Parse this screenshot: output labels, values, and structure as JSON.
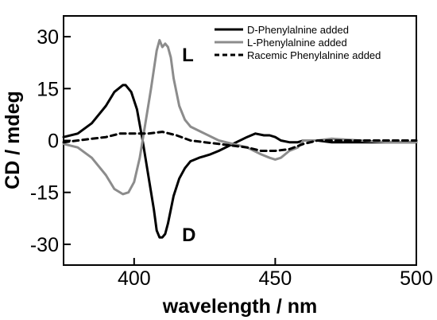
{
  "chart_data": {
    "type": "line",
    "xlabel": "wavelength / nm",
    "ylabel": "CD / mdeg",
    "xlim": [
      375,
      500
    ],
    "ylim": [
      -36,
      36
    ],
    "xticks": [
      400,
      450,
      500
    ],
    "yticks": [
      30,
      15,
      0,
      -15,
      -30
    ],
    "grid": false,
    "legend_position": "top-right",
    "series": [
      {
        "name": "D-Phenylalnine added",
        "color": "#000000",
        "dash": "solid",
        "x": [
          375,
          380,
          385,
          390,
          393,
          396,
          397,
          399,
          401,
          403,
          405,
          407,
          408,
          409,
          410,
          411,
          412,
          414,
          416,
          418,
          420,
          423,
          427,
          430,
          435,
          440,
          443,
          446,
          448,
          450,
          452,
          455,
          458,
          460,
          465,
          470,
          480,
          490,
          500
        ],
        "y": [
          1,
          2,
          5,
          10,
          14,
          16,
          16,
          14,
          9,
          0,
          -10,
          -20,
          -26,
          -28,
          -28,
          -27,
          -24,
          -16,
          -11,
          -8,
          -6,
          -5,
          -4,
          -3,
          -1,
          1,
          2,
          1.5,
          1.5,
          1,
          0,
          -0.5,
          -0.5,
          0,
          0,
          -0.5,
          -0.5,
          -0.5,
          -0.5
        ]
      },
      {
        "name": "L-Phenylalnine added",
        "color": "#8c8c8c",
        "dash": "solid",
        "x": [
          375,
          380,
          385,
          390,
          393,
          396,
          398,
          400,
          402,
          404,
          406,
          408,
          409,
          410,
          411,
          412,
          413,
          414,
          416,
          418,
          420,
          425,
          430,
          435,
          440,
          445,
          448,
          450,
          452,
          455,
          458,
          460,
          465,
          470,
          480,
          490,
          500
        ],
        "y": [
          -1,
          -2,
          -5,
          -10,
          -14,
          -15.5,
          -15,
          -12,
          -5,
          5,
          15,
          26,
          29,
          27,
          28,
          27,
          24,
          18,
          10,
          6,
          4,
          2,
          0,
          -1,
          -2,
          -4,
          -5,
          -5.5,
          -5,
          -3,
          -2,
          0,
          0,
          0.5,
          0,
          -0.5,
          -0.5
        ]
      },
      {
        "name": "Racemic Phenylalnine added",
        "color": "#000000",
        "dash": "dashed",
        "x": [
          375,
          380,
          385,
          390,
          395,
          400,
          405,
          410,
          415,
          420,
          425,
          430,
          435,
          440,
          445,
          450,
          455,
          460,
          465,
          470,
          480,
          490,
          500
        ],
        "y": [
          -0.5,
          0,
          0.5,
          1,
          2,
          2,
          2,
          2.5,
          1.5,
          0,
          -0.5,
          -1,
          -1.5,
          -2,
          -3,
          -3,
          -2.5,
          -1,
          0,
          0,
          0,
          0,
          0
        ]
      }
    ],
    "annotations": [
      {
        "text": "L",
        "x": 417,
        "y": 25
      },
      {
        "text": "D",
        "x": 417,
        "y": -27
      }
    ]
  }
}
